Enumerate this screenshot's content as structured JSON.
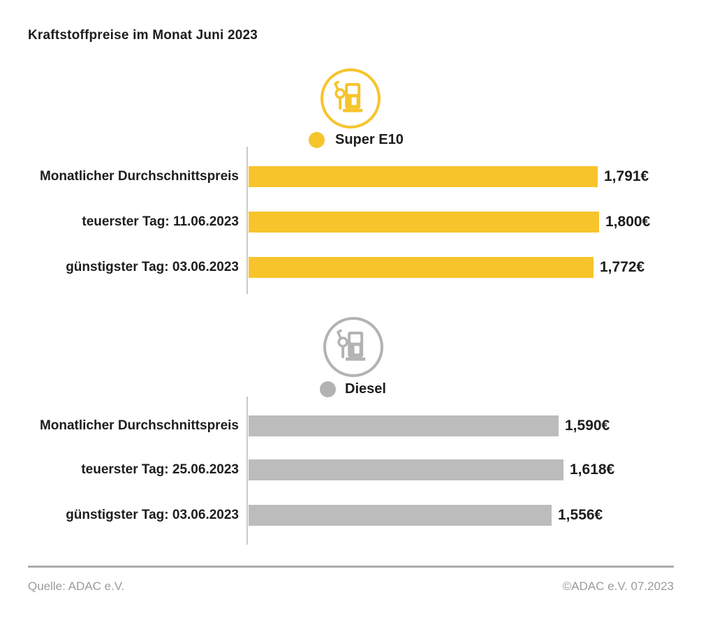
{
  "title": "Kraftstoffpreise im Monat Juni 2023",
  "colors": {
    "super_e10_yellow": "#F7C42C",
    "diesel_gray_bar": "#BCBCBC",
    "diesel_gray_icon": "#B3B3B3",
    "text_dark": "#1D1D1B",
    "text_muted": "#9B9B9B",
    "axis_line": "#C9C9C9",
    "footer_rule": "#ABABAB"
  },
  "chart_data": [
    {
      "type": "bar",
      "orientation": "horizontal",
      "title": "Super E10",
      "bar_color": "#F7C42C",
      "categories": [
        "Monatlicher Durchschnittspreis",
        "teuerster Tag: 11.06.2023",
        "günstigster Tag: 03.06.2023"
      ],
      "values": [
        1.791,
        1.8,
        1.772
      ],
      "value_labels": [
        "1,791€",
        "1,800€",
        "1,772€"
      ],
      "xlim": [
        0,
        1.85
      ],
      "grid": false,
      "legend_position": "top"
    },
    {
      "type": "bar",
      "orientation": "horizontal",
      "title": "Diesel",
      "bar_color": "#BCBCBC",
      "categories": [
        "Monatlicher Durchschnittspreis",
        "teuerster Tag: 25.06.2023",
        "günstigster Tag: 03.06.2023"
      ],
      "values": [
        1.59,
        1.618,
        1.556
      ],
      "value_labels": [
        "1,590€",
        "1,618€",
        "1,556€"
      ],
      "xlim": [
        0,
        1.85
      ],
      "grid": false,
      "legend_position": "top"
    }
  ],
  "footer": {
    "source": "Quelle: ADAC e.V.",
    "copyright": "©ADAC e.V. 07.2023"
  }
}
